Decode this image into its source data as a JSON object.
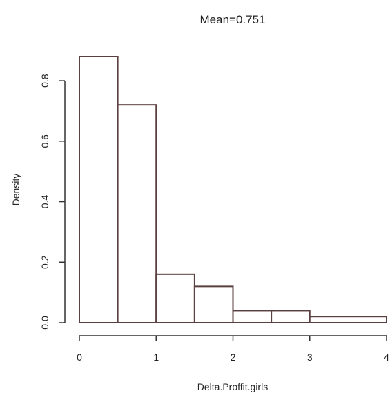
{
  "chart_data": {
    "type": "bar",
    "title": "Mean=0.751",
    "xlabel": "Delta.Proffit.girls",
    "ylabel": "Density",
    "bins": [
      {
        "x0": 0.0,
        "x1": 0.5,
        "density": 0.88
      },
      {
        "x0": 0.5,
        "x1": 1.0,
        "density": 0.72
      },
      {
        "x0": 1.0,
        "x1": 1.5,
        "density": 0.16
      },
      {
        "x0": 1.5,
        "x1": 2.0,
        "density": 0.12
      },
      {
        "x0": 2.0,
        "x1": 2.5,
        "density": 0.04
      },
      {
        "x0": 2.5,
        "x1": 3.0,
        "density": 0.04
      },
      {
        "x0": 3.0,
        "x1": 4.0,
        "density": 0.02
      }
    ],
    "xlim": [
      0,
      4
    ],
    "ylim": [
      0,
      0.88
    ],
    "x_ticks": [
      0,
      1,
      2,
      3,
      4
    ],
    "x_tick_labels": [
      "0",
      "1",
      "2",
      "3",
      "4"
    ],
    "y_ticks": [
      0,
      0.2,
      0.4,
      0.6,
      0.8
    ],
    "y_tick_labels": [
      "0.0",
      "0.2",
      "0.4",
      "0.6",
      "0.8"
    ],
    "grid": false,
    "legend": "none",
    "colors": {
      "bar_stroke": "#5a4040",
      "bar_fill": "#ffffff",
      "axis": "#333333"
    }
  }
}
